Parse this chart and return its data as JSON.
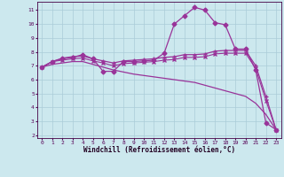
{
  "xlabel": "Windchill (Refroidissement éolien,°C)",
  "bg_color": "#cce8ee",
  "grid_color": "#aaccd8",
  "line_color": "#993399",
  "xlim": [
    -0.5,
    23.5
  ],
  "ylim": [
    1.8,
    11.6
  ],
  "yticks": [
    2,
    3,
    4,
    5,
    6,
    7,
    8,
    9,
    10,
    11
  ],
  "xticks": [
    0,
    1,
    2,
    3,
    4,
    5,
    6,
    7,
    8,
    9,
    10,
    11,
    12,
    13,
    14,
    15,
    16,
    17,
    18,
    19,
    20,
    21,
    22,
    23
  ],
  "series": [
    {
      "x": [
        0,
        1,
        2,
        3,
        4,
        5,
        6,
        7,
        8,
        9,
        10,
        11,
        12,
        13,
        14,
        15,
        16,
        17,
        18,
        19,
        20,
        21,
        22,
        23
      ],
      "y": [
        6.9,
        7.3,
        7.5,
        7.6,
        7.8,
        7.5,
        6.6,
        6.6,
        7.3,
        7.3,
        7.35,
        7.4,
        7.9,
        10.0,
        10.6,
        11.2,
        11.0,
        10.1,
        9.95,
        8.2,
        8.2,
        6.7,
        2.9,
        2.4
      ],
      "marker": "D",
      "markersize": 2.5,
      "linewidth": 0.9
    },
    {
      "x": [
        0,
        1,
        2,
        3,
        4,
        5,
        6,
        7,
        8,
        9,
        10,
        11,
        12,
        13,
        14,
        15,
        16,
        17,
        18,
        19,
        20,
        21,
        22,
        23
      ],
      "y": [
        6.9,
        7.3,
        7.55,
        7.65,
        7.7,
        7.5,
        7.35,
        7.2,
        7.35,
        7.4,
        7.45,
        7.5,
        7.6,
        7.65,
        7.8,
        7.8,
        7.85,
        8.05,
        8.1,
        8.1,
        8.1,
        7.0,
        4.8,
        2.4
      ],
      "marker": "+",
      "markersize": 3.5,
      "linewidth": 0.9
    },
    {
      "x": [
        0,
        1,
        2,
        3,
        4,
        5,
        6,
        7,
        8,
        9,
        10,
        11,
        12,
        13,
        14,
        15,
        16,
        17,
        18,
        19,
        20,
        21,
        22,
        23
      ],
      "y": [
        6.9,
        7.1,
        7.2,
        7.3,
        7.3,
        7.1,
        6.9,
        6.7,
        6.55,
        6.4,
        6.3,
        6.2,
        6.1,
        6.0,
        5.9,
        5.8,
        5.6,
        5.4,
        5.2,
        5.0,
        4.8,
        4.3,
        3.5,
        2.4
      ],
      "marker": null,
      "markersize": 0,
      "linewidth": 0.9
    },
    {
      "x": [
        0,
        1,
        2,
        3,
        4,
        5,
        6,
        7,
        8,
        9,
        10,
        11,
        12,
        13,
        14,
        15,
        16,
        17,
        18,
        19,
        20,
        21,
        22,
        23
      ],
      "y": [
        6.9,
        7.3,
        7.4,
        7.5,
        7.55,
        7.35,
        7.2,
        7.0,
        7.15,
        7.2,
        7.25,
        7.3,
        7.4,
        7.45,
        7.6,
        7.6,
        7.65,
        7.85,
        7.9,
        7.9,
        7.9,
        6.8,
        4.5,
        2.4
      ],
      "marker": "x",
      "markersize": 2.5,
      "linewidth": 0.8
    }
  ]
}
